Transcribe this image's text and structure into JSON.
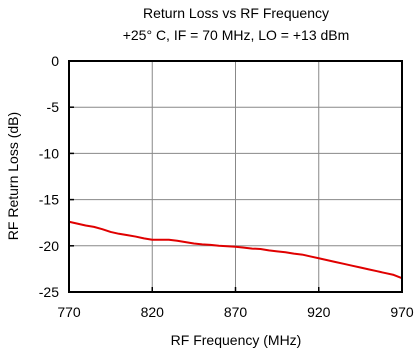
{
  "chart_data": {
    "type": "line",
    "title": "Return Loss vs RF Frequency",
    "subtitle": "+25° C, IF = 70 MHz, LO = +13 dBm",
    "xlabel": "RF Frequency (MHz)",
    "ylabel": "RF Return Loss (dB)",
    "xlim": [
      770,
      970
    ],
    "ylim": [
      -25,
      0
    ],
    "xticks": [
      770,
      820,
      870,
      920,
      970
    ],
    "yticks": [
      0,
      -5,
      -10,
      -15,
      -20,
      -25
    ],
    "grid": true,
    "series": [
      {
        "color": "#e00000",
        "x": [
          770,
          775,
          780,
          785,
          790,
          795,
          800,
          805,
          810,
          815,
          820,
          825,
          830,
          835,
          840,
          845,
          850,
          855,
          860,
          865,
          870,
          875,
          880,
          885,
          890,
          895,
          900,
          905,
          910,
          915,
          920,
          925,
          930,
          935,
          940,
          945,
          950,
          955,
          960,
          965,
          970
        ],
        "values": [
          -17.4,
          -17.6,
          -17.8,
          -17.95,
          -18.2,
          -18.5,
          -18.7,
          -18.85,
          -19.0,
          -19.2,
          -19.35,
          -19.35,
          -19.35,
          -19.45,
          -19.6,
          -19.75,
          -19.85,
          -19.9,
          -20.0,
          -20.05,
          -20.1,
          -20.2,
          -20.3,
          -20.35,
          -20.5,
          -20.6,
          -20.7,
          -20.85,
          -20.95,
          -21.15,
          -21.35,
          -21.55,
          -21.75,
          -21.95,
          -22.15,
          -22.35,
          -22.55,
          -22.75,
          -22.95,
          -23.15,
          -23.5
        ]
      }
    ]
  }
}
